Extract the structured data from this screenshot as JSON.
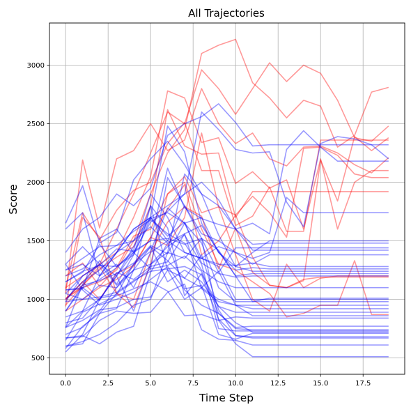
{
  "chart_data": {
    "type": "line",
    "title": "All Trajectories",
    "xlabel": "Time Step",
    "ylabel": "Score",
    "xlim": [
      -0.95,
      19.95
    ],
    "ylim": [
      360,
      3360
    ],
    "xticks": [
      0.0,
      2.5,
      5.0,
      7.5,
      10.0,
      12.5,
      15.0,
      17.5
    ],
    "xtick_labels": [
      "0.0",
      "2.5",
      "5.0",
      "7.5",
      "10.0",
      "12.5",
      "15.0",
      "17.5"
    ],
    "yticks": [
      500,
      1000,
      1500,
      2000,
      2500,
      3000
    ],
    "ytick_labels": [
      "500",
      "1000",
      "1500",
      "2000",
      "2500",
      "3000"
    ],
    "grid": true,
    "legend": "none",
    "colors": {
      "red": "#ff0000",
      "blue": "#0000ff",
      "line_alpha": 0.4
    },
    "x": [
      0,
      1,
      2,
      3,
      4,
      5,
      6,
      7,
      8,
      9,
      10,
      11,
      12,
      13,
      14,
      15,
      16,
      17,
      18,
      19
    ],
    "series": [
      {
        "color": "red",
        "values": [
          1010,
          1100,
          1150,
          1250,
          1500,
          1900,
          2250,
          2450,
          3100,
          3170,
          3220,
          2850,
          2720,
          2550,
          2700,
          2650,
          2300,
          2400,
          2770,
          2810
        ]
      },
      {
        "color": "red",
        "values": [
          1100,
          1200,
          1300,
          1600,
          1900,
          2250,
          2600,
          2500,
          2960,
          2800,
          2580,
          2800,
          3020,
          2860,
          3000,
          2930,
          2700,
          2380,
          2350,
          2480
        ]
      },
      {
        "color": "red",
        "values": [
          1050,
          2190,
          1610,
          2200,
          2270,
          2500,
          2270,
          2360,
          2800,
          2500,
          2330,
          2420,
          2200,
          2140,
          2300,
          2310,
          2250,
          2150,
          2080,
          2210
        ]
      },
      {
        "color": "red",
        "values": [
          1000,
          1150,
          1300,
          1400,
          1700,
          2050,
          2780,
          2720,
          2340,
          2380,
          1990,
          2090,
          1950,
          2020,
          1600,
          2200,
          1600,
          2000,
          2100,
          2100
        ]
      },
      {
        "color": "red",
        "values": [
          950,
          1120,
          1260,
          1360,
          1450,
          1800,
          2620,
          2310,
          2240,
          2250,
          1700,
          1920,
          1920,
          1920,
          1920,
          1920,
          1920,
          1920,
          1920,
          1920
        ]
      },
      {
        "color": "red",
        "values": [
          1090,
          1740,
          1510,
          1760,
          1930,
          2000,
          2330,
          2510,
          2100,
          2100,
          1630,
          1710,
          1960,
          1580,
          1580,
          2360,
          2360,
          2360,
          2360,
          2360
        ]
      },
      {
        "color": "red",
        "values": [
          1200,
          1310,
          1110,
          1270,
          1540,
          1600,
          1900,
          2050,
          1740,
          1790,
          1720,
          1880,
          1740,
          1530,
          2290,
          2300,
          2230,
          2070,
          2040,
          2040
        ]
      },
      {
        "color": "red",
        "values": [
          1000,
          1150,
          1000,
          1220,
          1290,
          1530,
          1770,
          1980,
          1380,
          1500,
          1720,
          1360,
          1120,
          1100,
          1160,
          2190,
          1840,
          2390,
          2270,
          2380
        ]
      },
      {
        "color": "red",
        "values": [
          900,
          1000,
          1100,
          1170,
          1280,
          1530,
          1460,
          1700,
          2420,
          1790,
          1380,
          1000,
          900,
          1300,
          1100,
          1180,
          1200,
          1200,
          1200,
          1200
        ]
      },
      {
        "color": "red",
        "values": [
          940,
          1700,
          1530,
          1050,
          1000,
          1400,
          1660,
          1790,
          1710,
          1260,
          1610,
          1230,
          1120,
          1100,
          1170,
          1190,
          1190,
          1190,
          1190,
          1190
        ]
      },
      {
        "color": "red",
        "values": [
          1000,
          1120,
          1280,
          1050,
          930,
          1300,
          1900,
          2000,
          1600,
          1300,
          1250,
          1150,
          1050,
          850,
          880,
          950,
          950,
          1330,
          870,
          870
        ]
      },
      {
        "color": "blue",
        "values": [
          1250,
          1300,
          1200,
          1400,
          1600,
          1700,
          1800,
          1900,
          2600,
          2450,
          2280,
          2250,
          2260,
          1830,
          1620,
          2330,
          2390,
          2370,
          2320,
          2200
        ]
      },
      {
        "color": "blue",
        "values": [
          1400,
          1600,
          1700,
          1900,
          1800,
          1950,
          2400,
          2500,
          2560,
          2670,
          2510,
          2310,
          2320,
          2320,
          2320,
          2320,
          2320,
          2320,
          2320,
          2320
        ]
      },
      {
        "color": "blue",
        "values": [
          1650,
          1970,
          1480,
          1570,
          2020,
          2200,
          2350,
          2150,
          1900,
          1800,
          1600,
          1650,
          1560,
          2280,
          2440,
          2300,
          2180,
          2180,
          2180,
          2180
        ]
      },
      {
        "color": "blue",
        "values": [
          1600,
          1740,
          1200,
          1400,
          1600,
          1700,
          1500,
          1400,
          1350,
          1450,
          1400,
          1350,
          1400,
          1870,
          1740,
          1740,
          1740,
          1740,
          1740,
          1740
        ]
      },
      {
        "color": "blue",
        "values": [
          1250,
          1350,
          1450,
          1460,
          1500,
          1700,
          2480,
          2260,
          1650,
          1400,
          1280,
          1400,
          1500,
          1500,
          1500,
          1500,
          1500,
          1500,
          1500,
          1500
        ]
      },
      {
        "color": "blue",
        "values": [
          1300,
          1450,
          1300,
          1200,
          1400,
          1500,
          2120,
          1780,
          1690,
          1640,
          1600,
          1470,
          1480,
          1480,
          1480,
          1480,
          1480,
          1480,
          1480,
          1480
        ]
      },
      {
        "color": "blue",
        "values": [
          1150,
          1240,
          1290,
          1430,
          1410,
          1500,
          1520,
          1470,
          1520,
          1230,
          1440,
          1440,
          1440,
          1440,
          1440,
          1440,
          1440,
          1440,
          1440,
          1440
        ]
      },
      {
        "color": "blue",
        "values": [
          1080,
          1090,
          1520,
          1600,
          1400,
          1660,
          1750,
          1900,
          2000,
          1850,
          1600,
          1420,
          1420,
          1420,
          1420,
          1420,
          1420,
          1420,
          1420,
          1420
        ]
      },
      {
        "color": "blue",
        "values": [
          1150,
          1230,
          1470,
          1280,
          1400,
          1260,
          2040,
          1800,
          1560,
          1500,
          1400,
          1300,
          1380,
          1380,
          1380,
          1380,
          1380,
          1380,
          1380,
          1380
        ]
      },
      {
        "color": "blue",
        "values": [
          1050,
          1200,
          1290,
          1280,
          1380,
          1690,
          1740,
          1650,
          1350,
          1300,
          1290,
          1310,
          1280,
          1280,
          1280,
          1280,
          1280,
          1280,
          1280,
          1280
        ]
      },
      {
        "color": "blue",
        "values": [
          900,
          1120,
          1160,
          1220,
          1310,
          1460,
          1390,
          1650,
          1700,
          1400,
          1250,
          1270,
          1260,
          1260,
          1260,
          1260,
          1260,
          1260,
          1260,
          1260
        ]
      },
      {
        "color": "blue",
        "values": [
          980,
          1200,
          1300,
          1120,
          1250,
          1300,
          1400,
          2070,
          1900,
          1550,
          1280,
          1240,
          1240,
          1240,
          1240,
          1240,
          1240,
          1240,
          1240,
          1240
        ]
      },
      {
        "color": "blue",
        "values": [
          1000,
          1150,
          1250,
          1400,
          1500,
          1620,
          1480,
          1560,
          1630,
          1410,
          1200,
          1220,
          1220,
          1220,
          1220,
          1220,
          1220,
          1220,
          1220,
          1220
        ]
      },
      {
        "color": "blue",
        "values": [
          850,
          900,
          1000,
          1200,
          1450,
          1700,
          1540,
          1660,
          1310,
          1220,
          1190,
          1200,
          1200,
          1200,
          1200,
          1200,
          1200,
          1200,
          1200,
          1200
        ]
      },
      {
        "color": "blue",
        "values": [
          1200,
          1260,
          1380,
          1460,
          1580,
          1680,
          1560,
          1480,
          1250,
          1150,
          1100,
          1100,
          1100,
          1100,
          1100,
          1100,
          1100,
          1100,
          1100,
          1100
        ]
      },
      {
        "color": "blue",
        "values": [
          760,
          900,
          1200,
          1300,
          1100,
          1400,
          1500,
          1800,
          1520,
          1420,
          1200,
          980,
          1010,
          1010,
          1010,
          1010,
          1010,
          1010,
          1010,
          1010
        ]
      },
      {
        "color": "blue",
        "values": [
          1080,
          1100,
          1170,
          1270,
          1420,
          1900,
          1700,
          1400,
          1350,
          1280,
          1000,
          1000,
          1000,
          1000,
          1000,
          1000,
          1000,
          1000,
          1000,
          1000
        ]
      },
      {
        "color": "blue",
        "values": [
          800,
          840,
          1010,
          1040,
          1300,
          1410,
          1780,
          1650,
          1480,
          1100,
          980,
          980,
          980,
          980,
          980,
          980,
          980,
          980,
          980,
          980
        ]
      },
      {
        "color": "blue",
        "values": [
          900,
          1100,
          990,
          1230,
          1170,
          1280,
          1320,
          1560,
          1090,
          980,
          950,
          950,
          950,
          950,
          950,
          950,
          950,
          950,
          950,
          950
        ]
      },
      {
        "color": "blue",
        "values": [
          1050,
          1000,
          1120,
          1100,
          1300,
          1450,
          1330,
          1180,
          1100,
          1000,
          950,
          920,
          920,
          920,
          920,
          920,
          920,
          920,
          920,
          920
        ]
      },
      {
        "color": "blue",
        "values": [
          700,
          760,
          900,
          1100,
          1250,
          1450,
          1150,
          1250,
          1150,
          940,
          890,
          890,
          890,
          890,
          890,
          890,
          890,
          890,
          890,
          890
        ]
      },
      {
        "color": "blue",
        "values": [
          760,
          1130,
          1330,
          1130,
          1380,
          1800,
          1250,
          1000,
          1100,
          1240,
          950,
          860,
          860,
          860,
          860,
          860,
          860,
          860,
          860,
          860
        ]
      },
      {
        "color": "blue",
        "values": [
          650,
          890,
          960,
          1030,
          1090,
          1150,
          1070,
          860,
          870,
          820,
          850,
          840,
          840,
          840,
          840,
          840,
          840,
          840,
          840,
          840
        ]
      },
      {
        "color": "blue",
        "values": [
          1300,
          1080,
          950,
          1000,
          1060,
          1170,
          1280,
          1080,
          950,
          880,
          760,
          770,
          770,
          770,
          770,
          770,
          770,
          770,
          770,
          770
        ]
      },
      {
        "color": "blue",
        "values": [
          600,
          620,
          880,
          1050,
          1150,
          1260,
          1290,
          1370,
          1240,
          880,
          750,
          740,
          740,
          740,
          740,
          740,
          740,
          740,
          740,
          740
        ]
      },
      {
        "color": "blue",
        "values": [
          550,
          700,
          1000,
          1200,
          900,
          1300,
          1450,
          1550,
          1300,
          750,
          730,
          730,
          730,
          730,
          730,
          730,
          730,
          730,
          730,
          730
        ]
      },
      {
        "color": "blue",
        "values": [
          580,
          770,
          880,
          920,
          1250,
          1800,
          1610,
          1030,
          1220,
          940,
          800,
          720,
          720,
          720,
          720,
          720,
          720,
          720,
          720,
          720
        ]
      },
      {
        "color": "blue",
        "values": [
          670,
          690,
          620,
          720,
          770,
          1230,
          1480,
          1090,
          1120,
          700,
          660,
          710,
          710,
          710,
          710,
          710,
          710,
          710,
          710,
          710
        ]
      },
      {
        "color": "blue",
        "values": [
          760,
          820,
          910,
          930,
          1000,
          1020,
          1250,
          1180,
          1380,
          910,
          690,
          680,
          680,
          680,
          680,
          680,
          680,
          680,
          680,
          680
        ]
      },
      {
        "color": "blue",
        "values": [
          980,
          1000,
          1020,
          1060,
          1160,
          1240,
          1260,
          1280,
          1210,
          830,
          690,
          670,
          670,
          670,
          670,
          670,
          670,
          670,
          670,
          670
        ]
      },
      {
        "color": "blue",
        "values": [
          670,
          680,
          820,
          900,
          880,
          890,
          1060,
          1130,
          740,
          660,
          650,
          610,
          610,
          610,
          610,
          610,
          610,
          610,
          610,
          610
        ]
      },
      {
        "color": "blue",
        "values": [
          600,
          640,
          700,
          800,
          950,
          1000,
          1400,
          1350,
          1520,
          820,
          620,
          510,
          510,
          510,
          510,
          510,
          510,
          510,
          510,
          510
        ]
      }
    ]
  }
}
